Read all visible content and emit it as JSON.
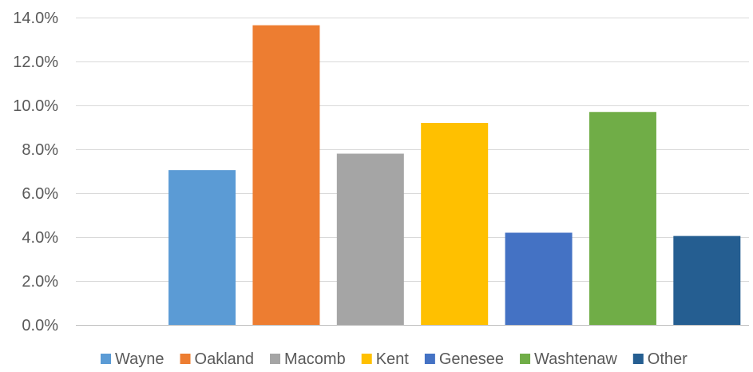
{
  "chart_data": {
    "type": "bar",
    "title": "",
    "xlabel": "",
    "ylabel": "",
    "ylim": [
      0,
      14
    ],
    "y_ticks": [
      0,
      2,
      4,
      6,
      8,
      10,
      12,
      14
    ],
    "y_tick_labels": [
      "0.0%",
      "2.0%",
      "4.0%",
      "6.0%",
      "8.0%",
      "10.0%",
      "12.0%",
      "14.0%"
    ],
    "grid": true,
    "legend_position": "bottom",
    "categories": [
      "",
      "",
      "",
      "",
      "",
      "",
      "",
      ""
    ],
    "series": [
      {
        "name": "Wayne",
        "color": "#5b9bd5",
        "values": [
          null,
          7.05,
          null,
          null,
          null,
          null,
          null,
          null
        ]
      },
      {
        "name": "Oakland",
        "color": "#ed7d31",
        "values": [
          null,
          null,
          13.65,
          null,
          null,
          null,
          null,
          null
        ]
      },
      {
        "name": "Macomb",
        "color": "#a5a5a5",
        "values": [
          null,
          null,
          null,
          7.8,
          null,
          null,
          null,
          null
        ]
      },
      {
        "name": "Kent",
        "color": "#ffc000",
        "values": [
          null,
          null,
          null,
          null,
          9.2,
          null,
          null,
          null
        ]
      },
      {
        "name": "Genesee",
        "color": "#4472c4",
        "values": [
          null,
          null,
          null,
          null,
          null,
          4.2,
          null,
          null
        ]
      },
      {
        "name": "Washtenaw",
        "color": "#70ad47",
        "values": [
          null,
          null,
          null,
          null,
          null,
          null,
          9.7,
          null
        ]
      },
      {
        "name": "Other",
        "color": "#255e91",
        "values": [
          null,
          null,
          null,
          null,
          null,
          null,
          null,
          4.05
        ]
      }
    ]
  }
}
